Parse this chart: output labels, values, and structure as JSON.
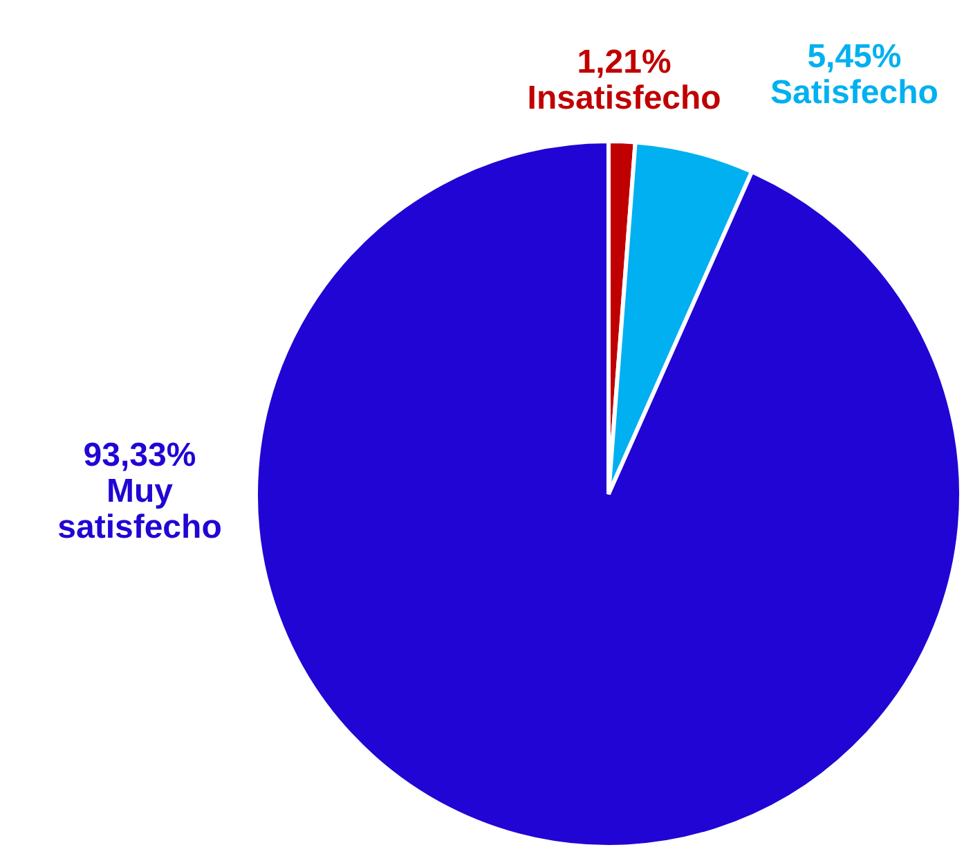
{
  "chart_data": {
    "type": "pie",
    "categories": [
      "Insatisfecho",
      "Satisfecho",
      "Muy satisfecho"
    ],
    "values": [
      1.21,
      5.45,
      93.33
    ],
    "value_labels": [
      "1,21%",
      "5,45%",
      "93,33%"
    ],
    "colors": [
      "#c00000",
      "#00b0f0",
      "#2005d4"
    ]
  }
}
